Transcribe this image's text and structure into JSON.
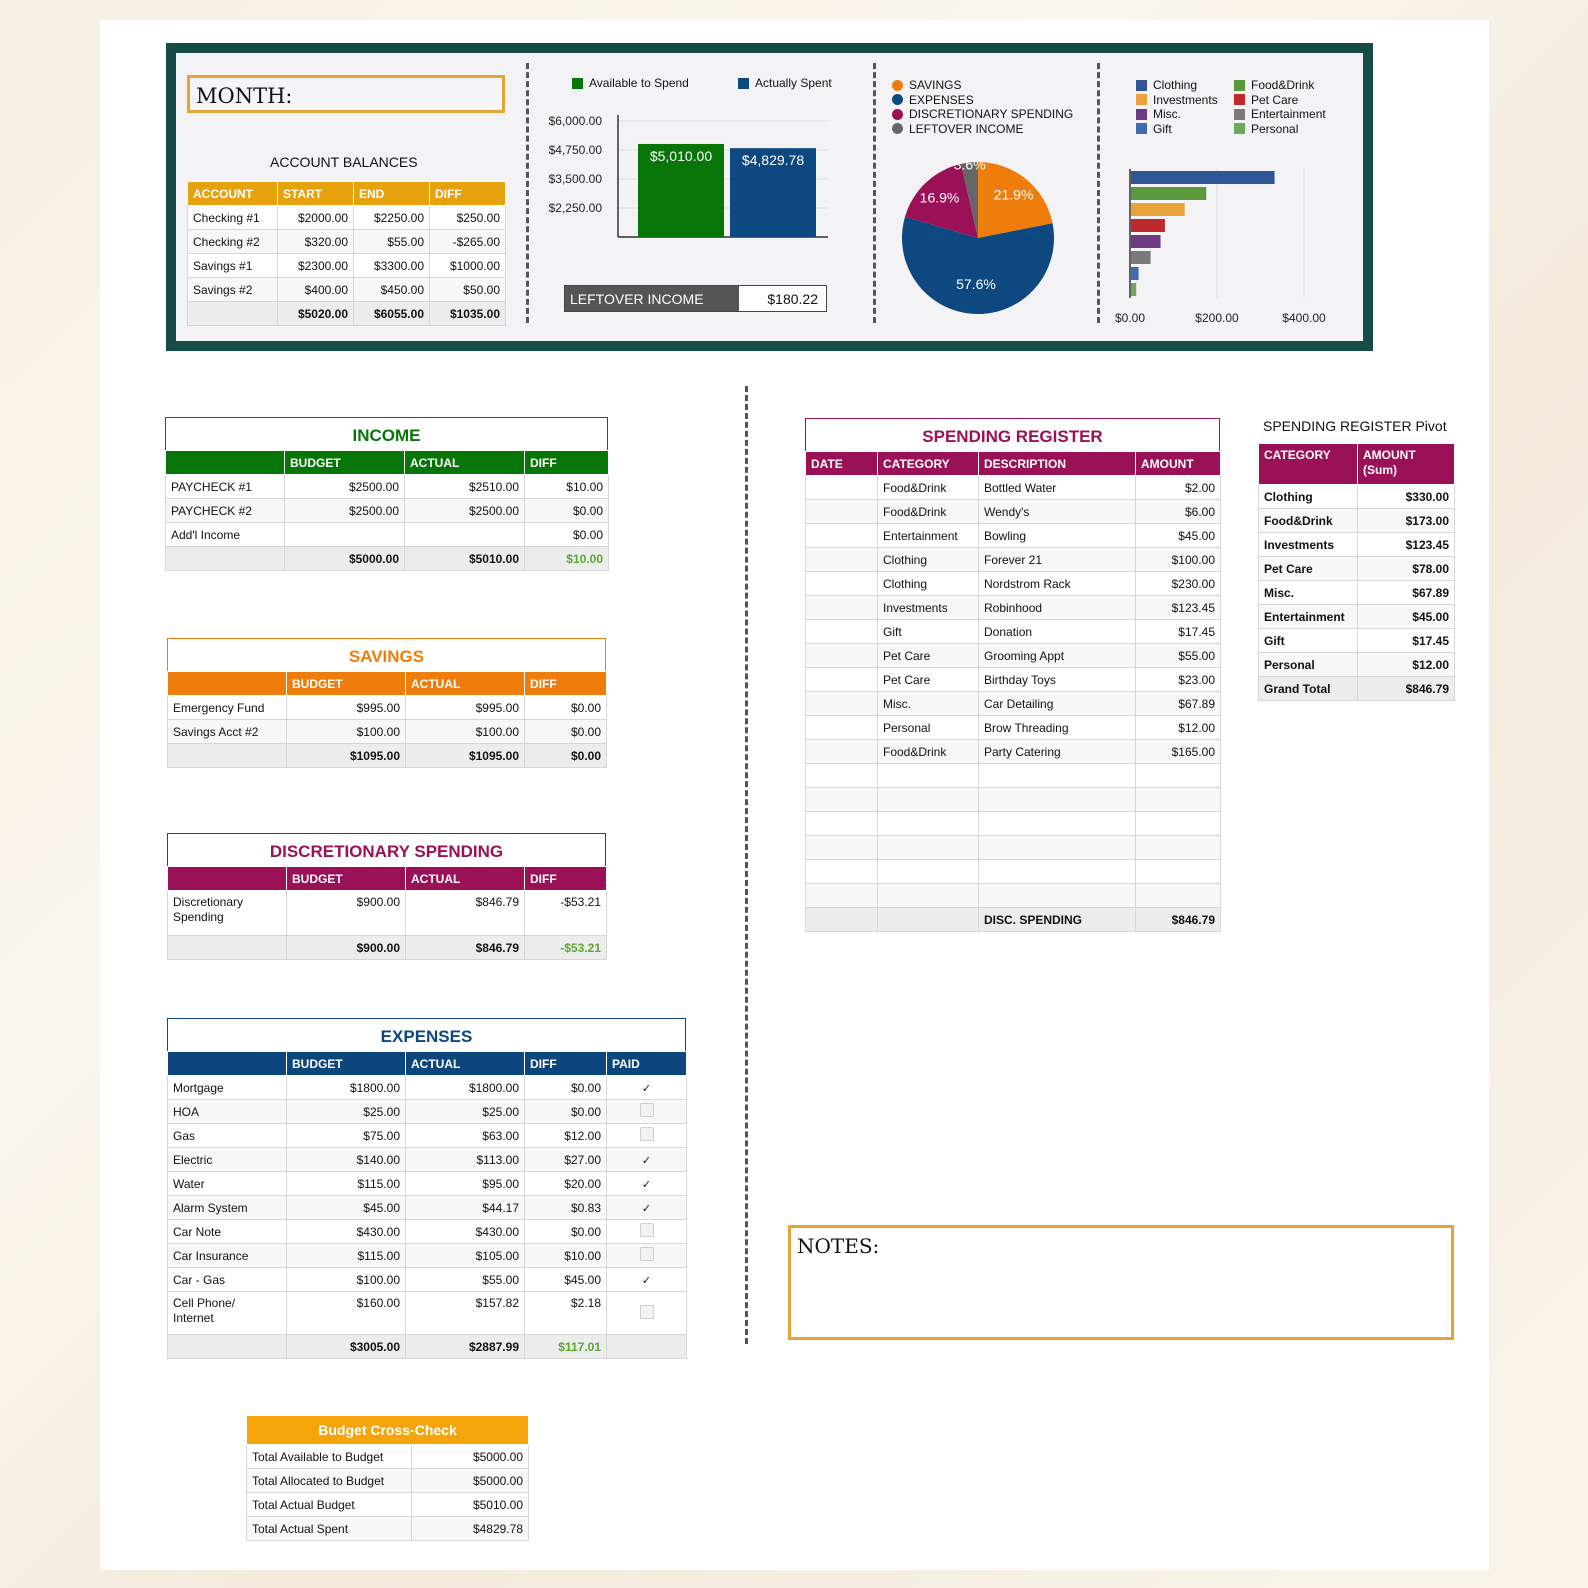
{
  "colors": {
    "green": "#087508",
    "orange": "#ef7d0c",
    "magenta": "#9b1157",
    "blue": "#0e4880",
    "gold": "#e5a20c",
    "navy": "#0c467c"
  },
  "month_label": "MONTH:",
  "notes_label": "NOTES:",
  "account_balances": {
    "title": "ACCOUNT BALANCES",
    "headers": [
      "ACCOUNT",
      "START",
      "END",
      "DIFF"
    ],
    "rows": [
      [
        "Checking #1",
        "$2000.00",
        "$2250.00",
        "$250.00"
      ],
      [
        "Checking #2",
        "$320.00",
        "$55.00",
        "-$265.00"
      ],
      [
        "Savings #1",
        "$2300.00",
        "$3300.00",
        "$1000.00"
      ],
      [
        "Savings #2",
        "$400.00",
        "$450.00",
        "$50.00"
      ]
    ],
    "totals": [
      "",
      "$5020.00",
      "$6055.00",
      "$1035.00"
    ]
  },
  "bar_chart": {
    "legend": [
      "Available to Spend",
      "Actually Spent"
    ],
    "ticks": [
      "$6,000.00",
      "$4,750.00",
      "$3,500.00",
      "$2,250.00"
    ],
    "label_available": "$5,010.00",
    "label_spent": "$4,829.78"
  },
  "chart_data": [
    {
      "type": "bar",
      "categories": [
        "Available to Spend",
        "Actually Spent"
      ],
      "values": [
        5010.0,
        4829.78
      ],
      "ylim": [
        1000,
        6000
      ],
      "ytick_labels": [
        "$6,000.00",
        "$4,750.00",
        "$3,500.00",
        "$2,250.00"
      ],
      "legend": "top"
    },
    {
      "type": "pie",
      "labels": [
        "SAVINGS",
        "EXPENSES",
        "DISCRETIONARY SPENDING",
        "LEFTOVER INCOME"
      ],
      "values": [
        21.9,
        57.6,
        16.9,
        3.6
      ],
      "value_labels": [
        "21.9%",
        "57.6%",
        "16.9%",
        "3.6%"
      ],
      "colors": [
        "#ef7d0c",
        "#0e4880",
        "#9b1157",
        "#666666"
      ],
      "legend": "top"
    },
    {
      "type": "bar",
      "orientation": "horizontal",
      "categories": [
        "Clothing",
        "Food&Drink",
        "Investments",
        "Pet Care",
        "Misc.",
        "Entertainment",
        "Gift",
        "Personal"
      ],
      "values": [
        330.0,
        173.0,
        123.45,
        78.0,
        67.89,
        45.0,
        17.45,
        12.0
      ],
      "xlim": [
        0,
        400
      ],
      "xtick_labels": [
        "$0.00",
        "$200.00",
        "$400.00"
      ],
      "colors": [
        "#2f5597",
        "#5b9a3c",
        "#e8a23a",
        "#c0282d",
        "#6c3a80",
        "#7a7a7a",
        "#3d6cb3",
        "#6aaa58"
      ],
      "legend": "top"
    }
  ],
  "leftover": {
    "label": "LEFTOVER INCOME",
    "value": "$180.22"
  },
  "pie": {
    "legend": [
      "SAVINGS",
      "EXPENSES",
      "DISCRETIONARY SPENDING",
      "LEFTOVER INCOME"
    ],
    "labels": [
      "21.9%",
      "57.6%",
      "16.9%",
      "3.6%"
    ]
  },
  "hbar": {
    "legend": [
      "Clothing",
      "Investments",
      "Misc.",
      "Gift",
      "Food&Drink",
      "Pet Care",
      "Entertainment",
      "Personal"
    ],
    "ticks": [
      "$0.00",
      "$200.00",
      "$400.00"
    ]
  },
  "income": {
    "title": "INCOME",
    "headers": [
      "",
      "BUDGET",
      "ACTUAL",
      "DIFF"
    ],
    "rows": [
      [
        "PAYCHECK #1",
        "$2500.00",
        "$2510.00",
        "$10.00"
      ],
      [
        "PAYCHECK #2",
        "$2500.00",
        "$2500.00",
        "$0.00"
      ],
      [
        "Add'l Income",
        "",
        "",
        "$0.00"
      ]
    ],
    "totals": [
      "",
      "$5000.00",
      "$5010.00",
      "$10.00"
    ]
  },
  "savings": {
    "title": "SAVINGS",
    "headers": [
      "",
      "BUDGET",
      "ACTUAL",
      "DIFF"
    ],
    "rows": [
      [
        "Emergency Fund",
        "$995.00",
        "$995.00",
        "$0.00"
      ],
      [
        "Savings Acct #2",
        "$100.00",
        "$100.00",
        "$0.00"
      ]
    ],
    "totals": [
      "",
      "$1095.00",
      "$1095.00",
      "$0.00"
    ]
  },
  "discretionary": {
    "title": "DISCRETIONARY SPENDING",
    "headers": [
      "",
      "BUDGET",
      "ACTUAL",
      "DIFF"
    ],
    "row_label_1": "Discretionary",
    "row_label_2": "Spending",
    "row": [
      "$900.00",
      "$846.79",
      "-$53.21"
    ],
    "totals": [
      "",
      "$900.00",
      "$846.79",
      "-$53.21"
    ]
  },
  "expenses": {
    "title": "EXPENSES",
    "headers": [
      "",
      "BUDGET",
      "ACTUAL",
      "DIFF",
      "PAID"
    ],
    "rows": [
      [
        "Mortgage",
        "$1800.00",
        "$1800.00",
        "$0.00",
        true
      ],
      [
        "HOA",
        "$25.00",
        "$25.00",
        "$0.00",
        false
      ],
      [
        "Gas",
        "$75.00",
        "$63.00",
        "$12.00",
        false
      ],
      [
        "Electric",
        "$140.00",
        "$113.00",
        "$27.00",
        true
      ],
      [
        "Water",
        "$115.00",
        "$95.00",
        "$20.00",
        true
      ],
      [
        "Alarm System",
        "$45.00",
        "$44.17",
        "$0.83",
        true
      ],
      [
        "Car Note",
        "$430.00",
        "$430.00",
        "$0.00",
        false
      ],
      [
        "Car Insurance",
        "$115.00",
        "$105.00",
        "$10.00",
        false
      ],
      [
        "Car - Gas",
        "$100.00",
        "$55.00",
        "$45.00",
        true
      ]
    ],
    "last_label_1": "Cell Phone/",
    "last_label_2": "Internet",
    "last_row": [
      "$160.00",
      "$157.82",
      "$2.18"
    ],
    "totals": [
      "",
      "$3005.00",
      "$2887.99",
      "$117.01"
    ]
  },
  "crosscheck": {
    "title": "Budget Cross-Check",
    "rows": [
      [
        "Total Available to Budget",
        "$5000.00"
      ],
      [
        "Total Allocated to Budget",
        "$5000.00"
      ],
      [
        "Total Actual Budget",
        "$5010.00"
      ],
      [
        "Total Actual Spent",
        "$4829.78"
      ]
    ]
  },
  "register": {
    "title": "SPENDING REGISTER",
    "headers": [
      "DATE",
      "CATEGORY",
      "DESCRIPTION",
      "AMOUNT"
    ],
    "rows": [
      [
        "",
        "Food&Drink",
        "Bottled Water",
        "$2.00"
      ],
      [
        "",
        "Food&Drink",
        "Wendy's",
        "$6.00"
      ],
      [
        "",
        "Entertainment",
        "Bowling",
        "$45.00"
      ],
      [
        "",
        "Clothing",
        "Forever 21",
        "$100.00"
      ],
      [
        "",
        "Clothing",
        "Nordstrom Rack",
        "$230.00"
      ],
      [
        "",
        "Investments",
        "Robinhood",
        "$123.45"
      ],
      [
        "",
        "Gift",
        "Donation",
        "$17.45"
      ],
      [
        "",
        "Pet Care",
        "Grooming Appt",
        "$55.00"
      ],
      [
        "",
        "Pet Care",
        "Birthday Toys",
        "$23.00"
      ],
      [
        "",
        "Misc.",
        "Car Detailing",
        "$67.89"
      ],
      [
        "",
        "Personal",
        "Brow Threading",
        "$12.00"
      ],
      [
        "",
        "Food&Drink",
        "Party Catering",
        "$165.00"
      ],
      [
        "",
        "",
        "",
        ""
      ],
      [
        "",
        "",
        "",
        ""
      ],
      [
        "",
        "",
        "",
        ""
      ],
      [
        "",
        "",
        "",
        ""
      ],
      [
        "",
        "",
        "",
        ""
      ],
      [
        "",
        "",
        "",
        ""
      ]
    ],
    "totals": [
      "",
      "",
      "DISC. SPENDING",
      "$846.79"
    ]
  },
  "pivot": {
    "title": "SPENDING REGISTER Pivot",
    "headers": [
      "CATEGORY",
      "AMOUNT (Sum)"
    ],
    "rows": [
      [
        "Clothing",
        "$330.00"
      ],
      [
        "Food&Drink",
        "$173.00"
      ],
      [
        "Investments",
        "$123.45"
      ],
      [
        "Pet Care",
        "$78.00"
      ],
      [
        "Misc.",
        "$67.89"
      ],
      [
        "Entertainment",
        "$45.00"
      ],
      [
        "Gift",
        "$17.45"
      ],
      [
        "Personal",
        "$12.00"
      ]
    ],
    "total": [
      "Grand Total",
      "$846.79"
    ]
  }
}
